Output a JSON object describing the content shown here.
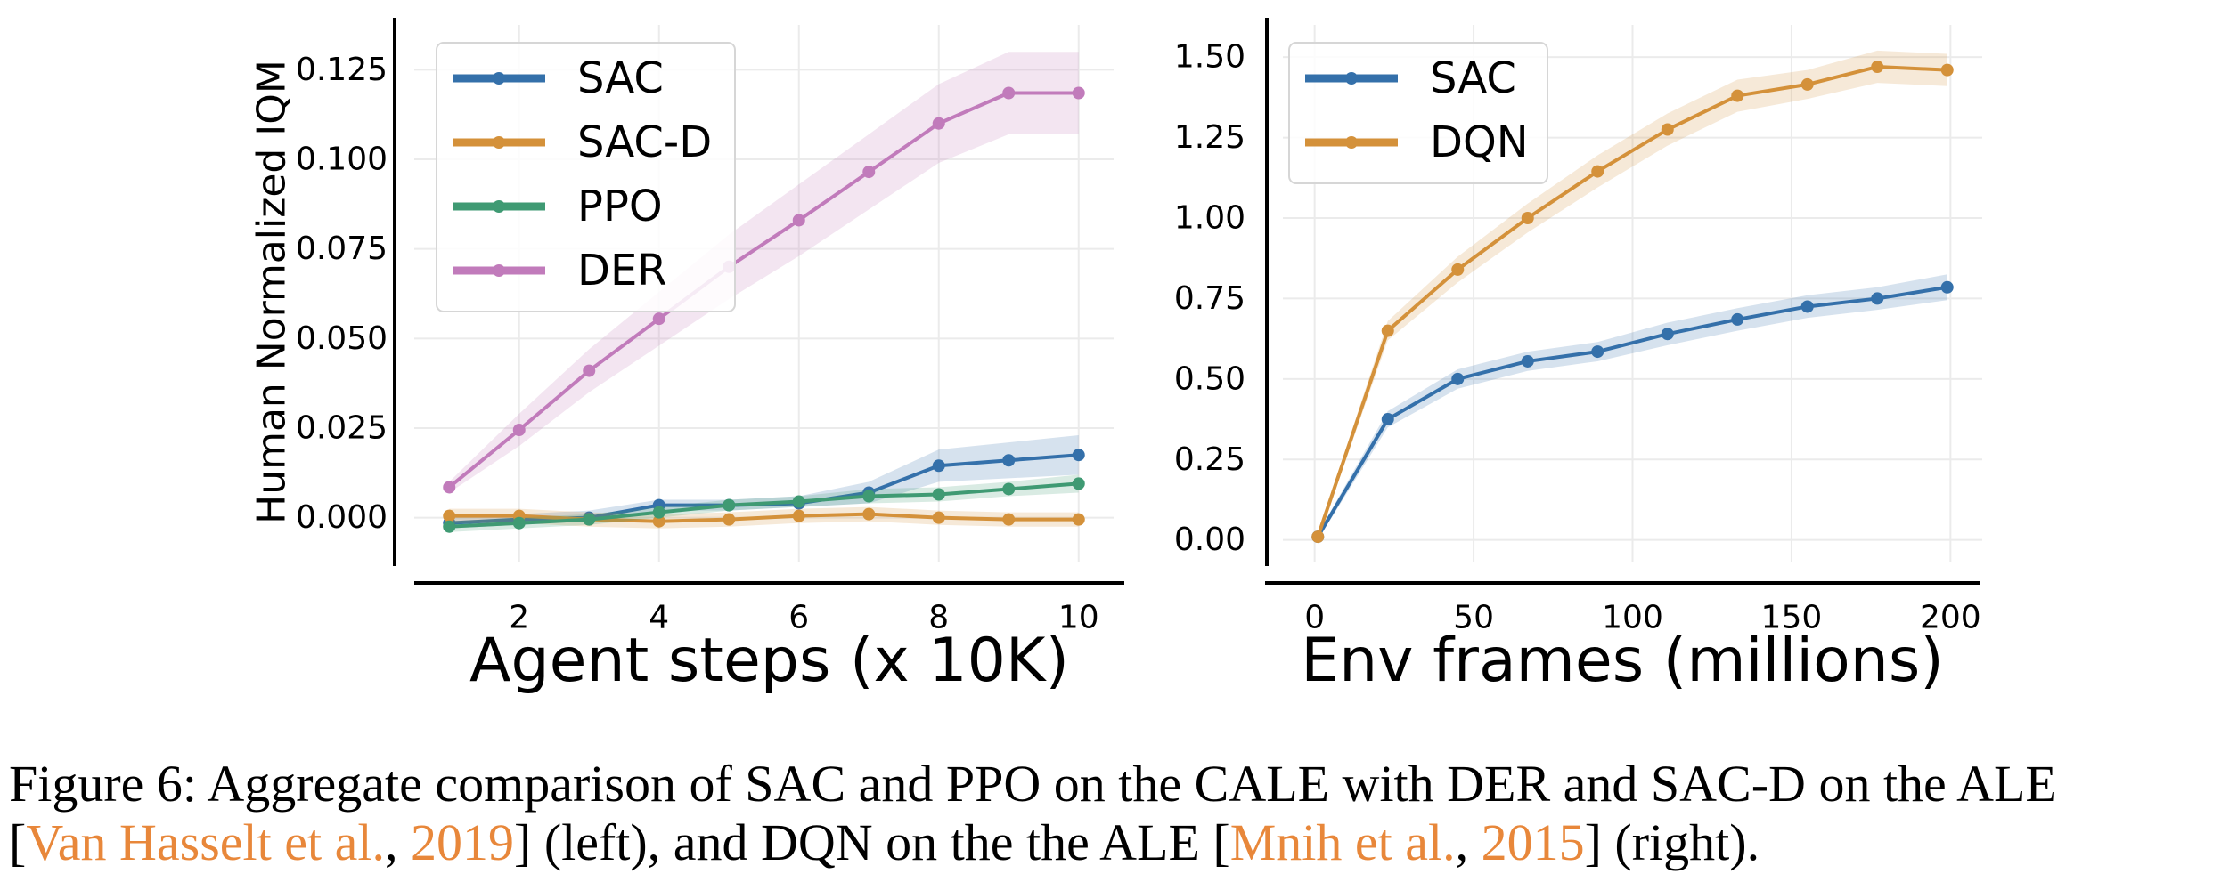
{
  "chart_data": [
    {
      "type": "line",
      "title": "",
      "xlabel": "Agent steps (x 10K)",
      "ylabel": "Human Normalized IQM",
      "xlim": [
        0.5,
        10.5
      ],
      "ylim": [
        -0.0125,
        0.1375
      ],
      "xticks": [
        2,
        4,
        6,
        8,
        10
      ],
      "xtick_labels": [
        "2",
        "4",
        "6",
        "8",
        "10"
      ],
      "yticks": [
        0,
        0.025,
        0.05,
        0.075,
        0.1,
        0.125
      ],
      "ytick_labels": [
        "0.000",
        "0.025",
        "0.050",
        "0.075",
        "0.100",
        "0.125"
      ],
      "grid": true,
      "legend": "top-left",
      "x": [
        1,
        2,
        3,
        4,
        5,
        6,
        7,
        8,
        9,
        10
      ],
      "series": [
        {
          "name": "SAC",
          "color": "#3470aa",
          "values": [
            -0.0015,
            -0.0005,
            0.0,
            0.0035,
            0.0035,
            0.004,
            0.007,
            0.0145,
            0.016,
            0.0175
          ],
          "lower": [
            -0.003,
            -0.002,
            -0.001,
            0.002,
            0.002,
            0.003,
            0.004,
            0.01,
            0.011,
            0.012
          ],
          "upper": [
            0.0,
            0.001,
            0.002,
            0.005,
            0.005,
            0.006,
            0.01,
            0.019,
            0.021,
            0.023
          ]
        },
        {
          "name": "SAC-D",
          "color": "#d4913a",
          "values": [
            0.0005,
            0.0005,
            -0.0005,
            -0.001,
            -0.0005,
            0.0005,
            0.001,
            0.0,
            -0.0005,
            -0.0005
          ],
          "lower": [
            -0.0015,
            -0.0015,
            -0.0025,
            -0.003,
            -0.0025,
            -0.0015,
            -0.001,
            -0.002,
            -0.0025,
            -0.0025
          ],
          "upper": [
            0.0025,
            0.0025,
            0.0015,
            0.001,
            0.0015,
            0.0025,
            0.003,
            0.002,
            0.0015,
            0.0015
          ]
        },
        {
          "name": "PPO",
          "color": "#3f9a73",
          "values": [
            -0.0025,
            -0.0015,
            -0.0005,
            0.0015,
            0.0035,
            0.0045,
            0.006,
            0.0065,
            0.008,
            0.0095
          ],
          "lower": [
            -0.004,
            -0.003,
            -0.002,
            0.0,
            0.002,
            0.003,
            0.004,
            0.0045,
            0.006,
            0.007
          ],
          "upper": [
            -0.001,
            0.0,
            0.001,
            0.003,
            0.005,
            0.006,
            0.008,
            0.0085,
            0.01,
            0.012
          ]
        },
        {
          "name": "DER",
          "color": "#c17bbb",
          "values": [
            0.0085,
            0.0245,
            0.041,
            0.0555,
            0.07,
            0.083,
            0.0965,
            0.11,
            0.1185,
            0.1185
          ],
          "lower": [
            0.007,
            0.02,
            0.035,
            0.048,
            0.061,
            0.073,
            0.086,
            0.099,
            0.107,
            0.107
          ],
          "upper": [
            0.01,
            0.029,
            0.047,
            0.063,
            0.079,
            0.093,
            0.107,
            0.121,
            0.13,
            0.13
          ]
        }
      ]
    },
    {
      "type": "line",
      "title": "",
      "xlabel": "Env frames (millions)",
      "ylabel": "",
      "xlim": [
        -10,
        210
      ],
      "ylim": [
        -0.07,
        1.6
      ],
      "xticks": [
        0,
        50,
        100,
        150,
        200
      ],
      "xtick_labels": [
        "0",
        "50",
        "100",
        "150",
        "200"
      ],
      "yticks": [
        0,
        0.25,
        0.5,
        0.75,
        1.0,
        1.25,
        1.5
      ],
      "ytick_labels": [
        "0.00",
        "0.25",
        "0.50",
        "0.75",
        "1.00",
        "1.25",
        "1.50"
      ],
      "grid": true,
      "legend": "top-left",
      "x": [
        1,
        23,
        45,
        67,
        89,
        111,
        133,
        155,
        177,
        199
      ],
      "series": [
        {
          "name": "SAC",
          "color": "#3470aa",
          "values": [
            0.01,
            0.375,
            0.5,
            0.555,
            0.585,
            0.64,
            0.685,
            0.725,
            0.75,
            0.785
          ],
          "lower": [
            0.0,
            0.35,
            0.47,
            0.525,
            0.555,
            0.605,
            0.65,
            0.69,
            0.715,
            0.745
          ],
          "upper": [
            0.02,
            0.4,
            0.53,
            0.585,
            0.615,
            0.675,
            0.72,
            0.76,
            0.785,
            0.825
          ]
        },
        {
          "name": "DQN",
          "color": "#d4913a",
          "values": [
            0.01,
            0.65,
            0.84,
            1.0,
            1.145,
            1.275,
            1.38,
            1.415,
            1.47,
            1.46
          ],
          "lower": [
            0.0,
            0.62,
            0.8,
            0.955,
            1.095,
            1.225,
            1.33,
            1.37,
            1.42,
            1.41
          ],
          "upper": [
            0.02,
            0.68,
            0.88,
            1.045,
            1.195,
            1.325,
            1.43,
            1.46,
            1.52,
            1.51
          ]
        }
      ]
    }
  ],
  "caption": {
    "line1": "Figure 6: Aggregate comparison of SAC and PPO on the CALE with DER and SAC-D on the ALE",
    "line2_open": "[",
    "cite1_author": "Van Hasselt et al.",
    "cite1_sep": ", ",
    "cite1_year": "2019",
    "line2_mid": "] (left), and DQN on the the ALE [",
    "cite2_author": "Mnih et al.",
    "cite2_sep": ", ",
    "cite2_year": "2015",
    "line2_close": "] (right)."
  }
}
